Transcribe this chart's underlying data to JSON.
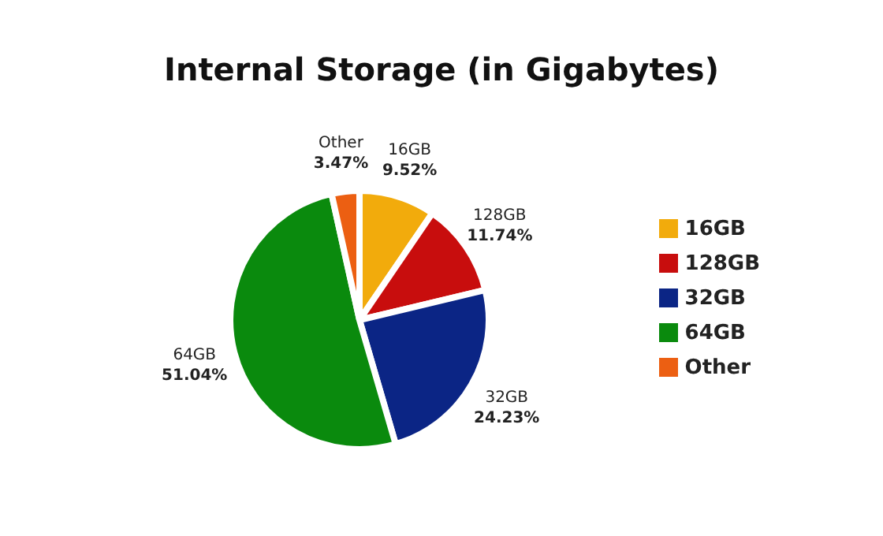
{
  "chart_data": {
    "type": "pie",
    "title": "Internal Storage (in Gigabytes)",
    "categories": [
      "16GB",
      "128GB",
      "32GB",
      "64GB",
      "Other"
    ],
    "values": [
      9.52,
      11.74,
      24.23,
      51.04,
      3.47
    ],
    "value_labels": [
      "9.52%",
      "11.74%",
      "24.23%",
      "51.04%",
      "3.47%"
    ],
    "colors": [
      "#f2ab0c",
      "#c80d0d",
      "#0b2585",
      "#0a8a0d",
      "#ec5f12"
    ],
    "legend": "right"
  }
}
